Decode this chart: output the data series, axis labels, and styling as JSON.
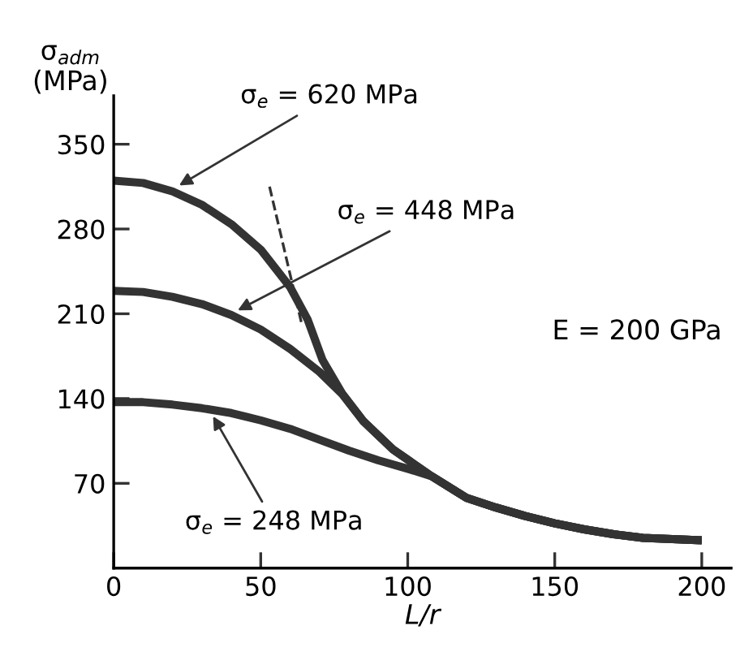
{
  "chart_data": {
    "type": "line",
    "xlabel": "L/r",
    "ylabel": "σ$_{adm}$\n(MPa)",
    "xlim": [
      0,
      210
    ],
    "ylim": [
      0,
      390
    ],
    "xticks": [
      0,
      50,
      100,
      150,
      200
    ],
    "yticks": [
      70,
      140,
      210,
      280,
      350
    ],
    "grid": false,
    "marker": "none",
    "series": [
      {
        "color": "#333333",
        "line_style": "solid",
        "x": [
          0,
          10,
          20,
          30,
          40,
          50,
          60,
          66,
          71,
          78,
          85,
          95,
          108,
          120,
          130,
          140,
          150,
          160,
          170,
          180,
          190,
          200
        ],
        "values": [
          320,
          318,
          311,
          300,
          284,
          263,
          232,
          205,
          172,
          143,
          121,
          98,
          76,
          58,
          50,
          43,
          37,
          32,
          28,
          25,
          24,
          23
        ]
      },
      {
        "color": "#333333",
        "line_style": "solid",
        "x": [
          0,
          10,
          20,
          30,
          40,
          50,
          60,
          70,
          78,
          85,
          95,
          108,
          120,
          130,
          140,
          150,
          160,
          170,
          180,
          190,
          200
        ],
        "values": [
          229,
          228,
          224,
          218,
          209,
          197,
          181,
          162,
          143,
          121,
          98,
          76,
          58,
          50,
          43,
          37,
          32,
          28,
          25,
          24,
          23
        ]
      },
      {
        "color": "#333333",
        "line_style": "solid",
        "x": [
          0,
          10,
          20,
          30,
          40,
          50,
          60,
          70,
          80,
          90,
          100,
          108,
          120,
          130,
          140,
          150,
          160,
          170,
          180,
          190,
          200
        ],
        "values": [
          137,
          137,
          135,
          132,
          128,
          122,
          115,
          106,
          97,
          89,
          82,
          76,
          58,
          50,
          43,
          37,
          32,
          28,
          25,
          24,
          23
        ]
      },
      {
        "color": "#333333",
        "line_style": "dashed",
        "x": [
          53,
          64
        ],
        "values": [
          315,
          201
        ]
      }
    ],
    "annotations": [
      {
        "text": "σ$_{e}$ = 620 MPa",
        "x": 21.6,
        "y": 315
      },
      {
        "text": "σ$_{e}$ = 448 MPa",
        "x": 41.5,
        "y": 212
      },
      {
        "text": "σ$_{e}$ = 248 MPa",
        "x": 33.4,
        "y": 127
      },
      "E = 200 GPa"
    ]
  }
}
